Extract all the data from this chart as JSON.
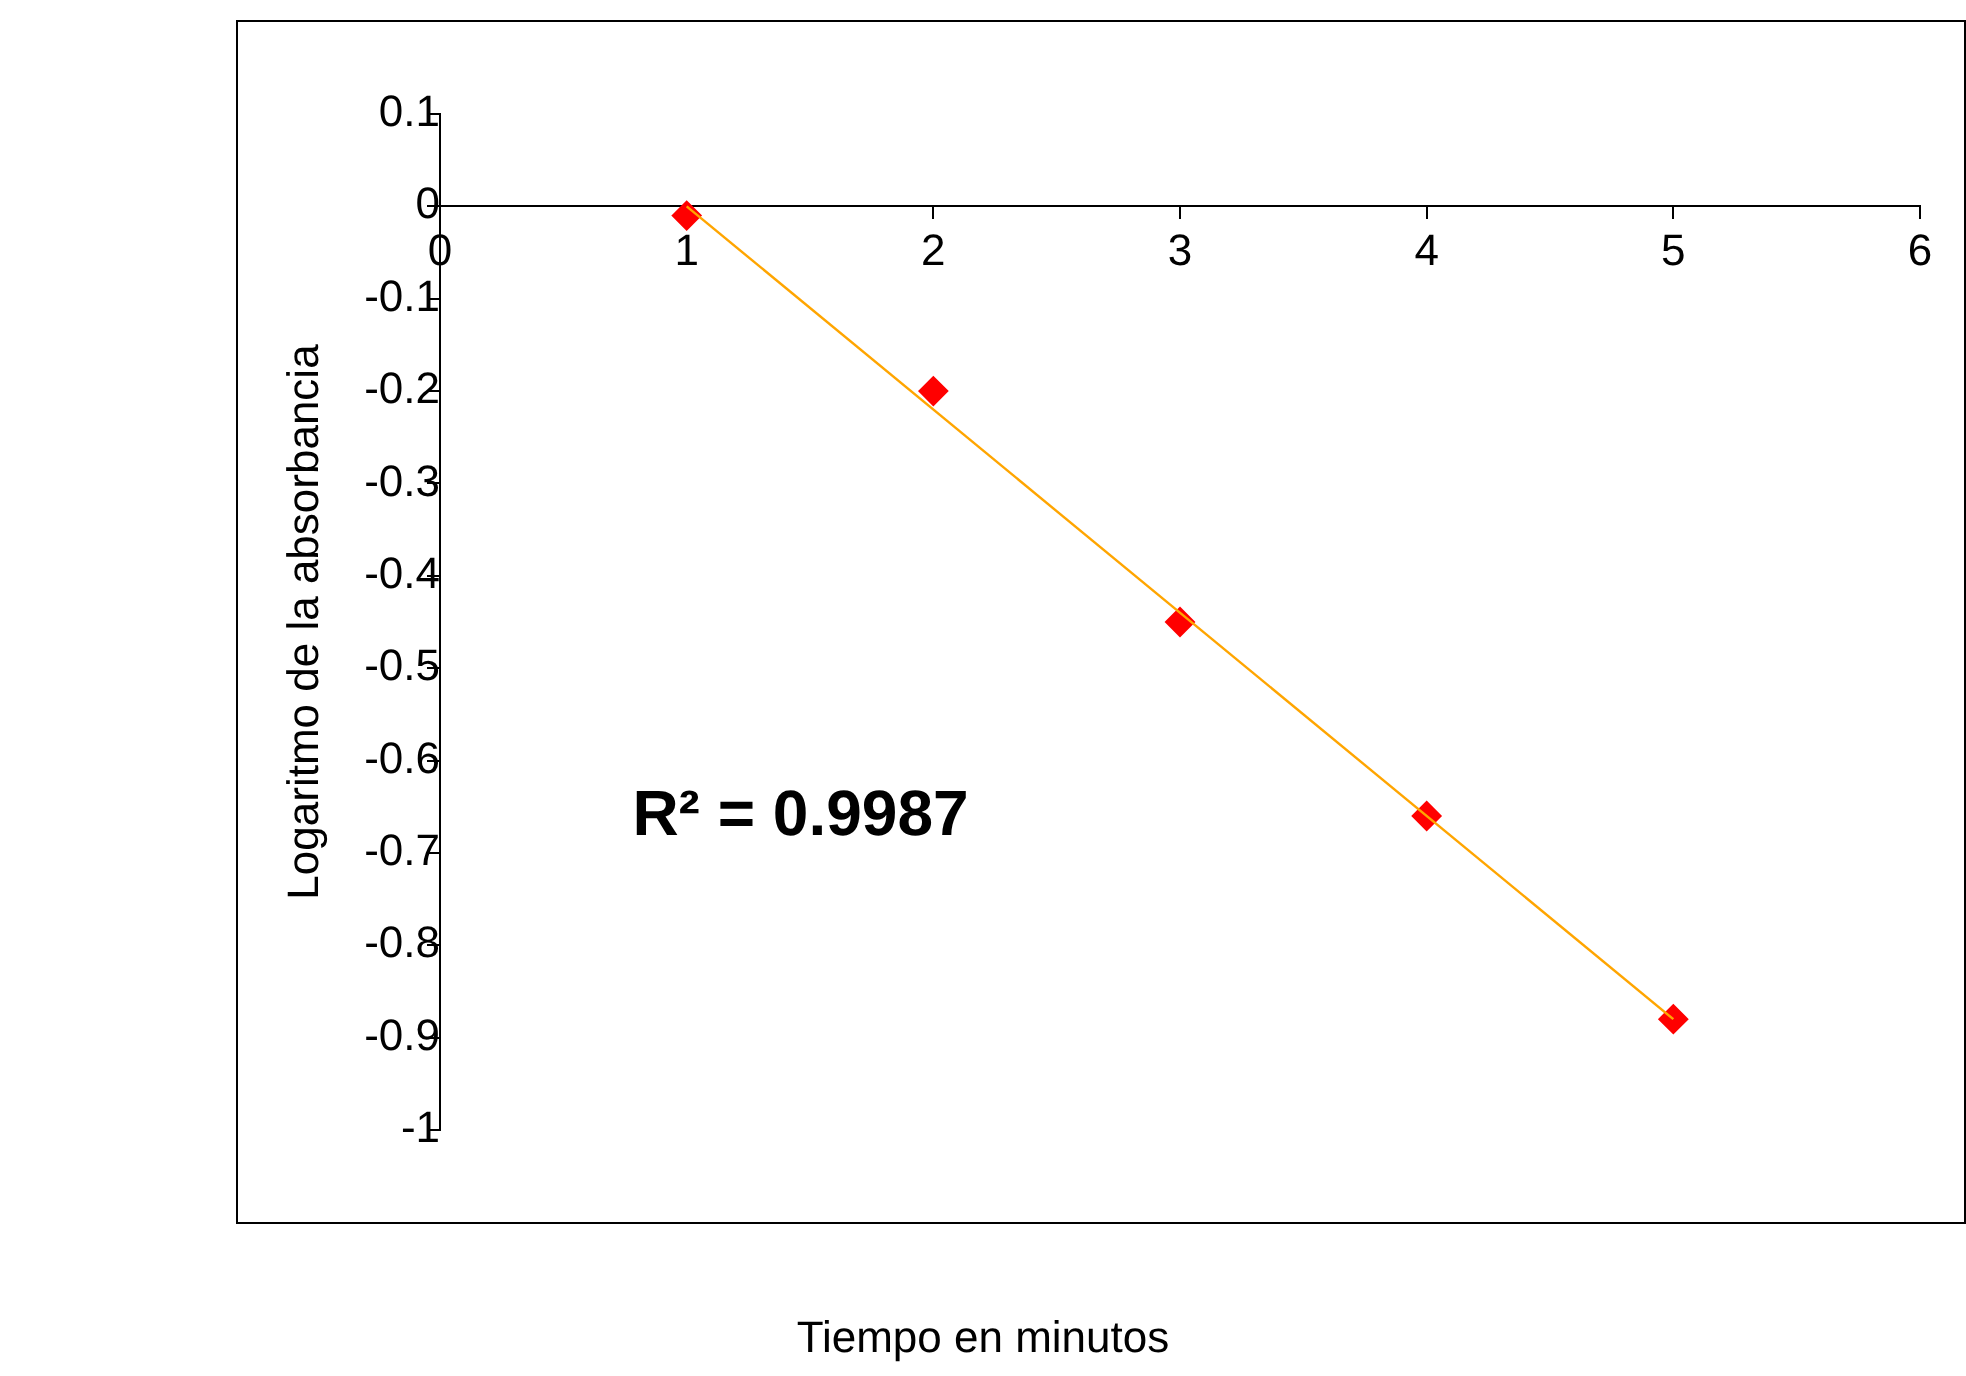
{
  "chart_data": {
    "type": "scatter",
    "xlabel": "Tiempo en minutos",
    "ylabel": "Logaritmo de la absorbancia",
    "x": [
      1,
      2,
      3,
      4,
      5
    ],
    "xlim": [
      0,
      6
    ],
    "xticks": [
      0,
      1,
      2,
      3,
      4,
      5,
      6
    ],
    "ylim": [
      -1,
      0.1
    ],
    "yticks": [
      0.1,
      0,
      -0.1,
      -0.2,
      -0.3,
      -0.4,
      -0.5,
      -0.6,
      -0.7,
      -0.8,
      -0.9,
      -1
    ],
    "grid": false,
    "legend": false,
    "marker": "diamond",
    "series": [
      {
        "type": "scatter",
        "color": "#ff0000",
        "values": [
          -0.01,
          -0.2,
          -0.45,
          -0.66,
          -0.88
        ]
      },
      {
        "type": "line",
        "color": "#ffa500",
        "x": [
          1,
          5
        ],
        "values": [
          0,
          -0.88
        ],
        "marker": "none"
      }
    ],
    "annotations": [
      "R² = 0.9987"
    ]
  }
}
